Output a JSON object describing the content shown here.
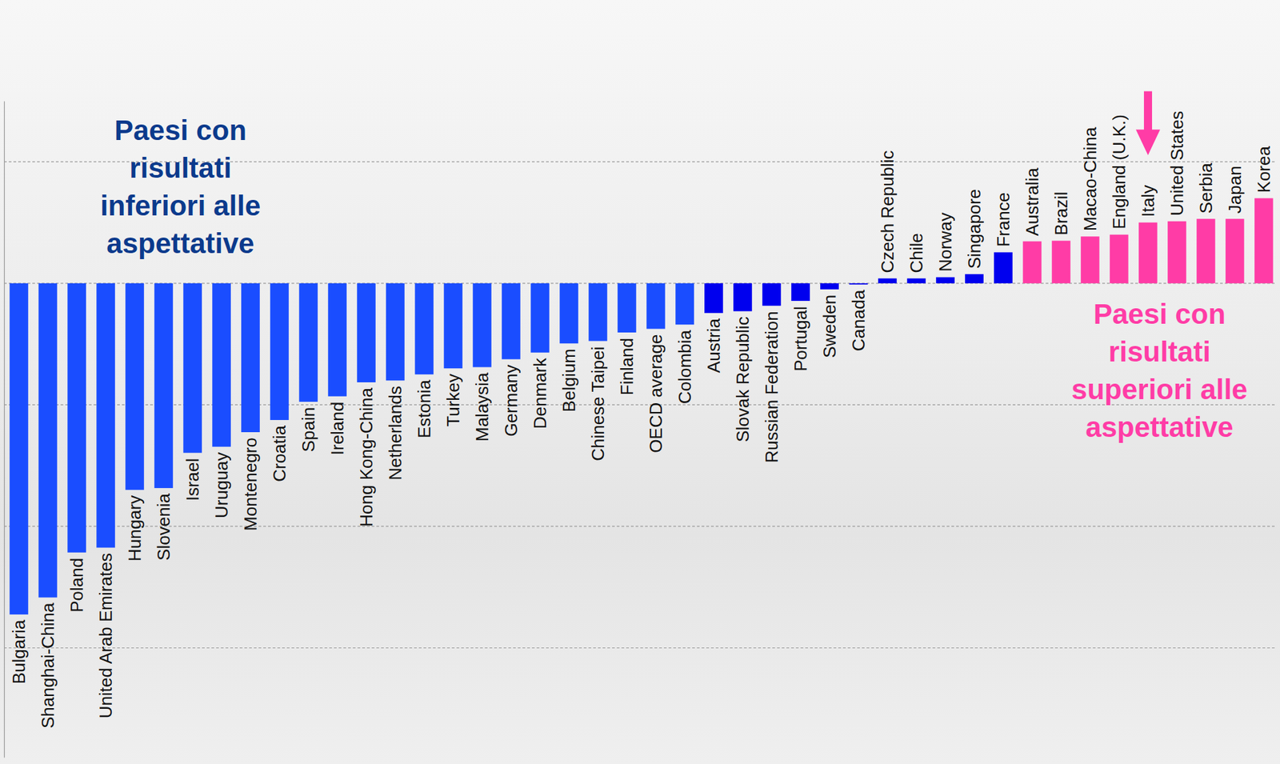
{
  "chart_data": {
    "type": "bar",
    "categories": [
      "Bulgaria",
      "Shanghai-China",
      "Poland",
      "United Arab Emirates",
      "Hungary",
      "Slovenia",
      "Israel",
      "Uruguay",
      "Montenegro",
      "Croatia",
      "Spain",
      "Ireland",
      "Hong Kong-China",
      "Netherlands",
      "Estonia",
      "Turkey",
      "Malaysia",
      "Germany",
      "Denmark",
      "Belgium",
      "Chinese Taipei",
      "Finland",
      "OECD average",
      "Colombia",
      "Austria",
      "Slovak Republic",
      "Russian Federation",
      "Portugal",
      "Sweden",
      "Canada",
      "Czech Republic",
      "Chile",
      "Norway",
      "Singapore",
      "France",
      "Australia",
      "Brazil",
      "Macao-China",
      "England (U.K.)",
      "Italy",
      "United States",
      "Serbia",
      "Japan",
      "Korea"
    ],
    "values": [
      -54.5,
      -51.7,
      -44.3,
      -43.5,
      -34.0,
      -33.7,
      -27.9,
      -26.9,
      -24.5,
      -22.5,
      -19.5,
      -18.6,
      -16.3,
      -16.0,
      -15.0,
      -14.0,
      -13.8,
      -12.5,
      -11.4,
      -9.9,
      -9.5,
      -8.1,
      -7.5,
      -6.8,
      -4.9,
      -4.6,
      -3.7,
      -2.9,
      -1.0,
      -0.2,
      0.8,
      0.8,
      1.0,
      1.5,
      5.1,
      6.9,
      7.0,
      7.7,
      8.0,
      10.0,
      10.2,
      10.6,
      10.6,
      14.0
    ],
    "colors": [
      "#1a4dff",
      "#1a4dff",
      "#1a4dff",
      "#1a4dff",
      "#1a4dff",
      "#1a4dff",
      "#1a4dff",
      "#1a4dff",
      "#1a4dff",
      "#1a4dff",
      "#1a4dff",
      "#1a4dff",
      "#1a4dff",
      "#1a4dff",
      "#1a4dff",
      "#1a4dff",
      "#1a4dff",
      "#1a4dff",
      "#1a4dff",
      "#1a4dff",
      "#1a4dff",
      "#1a4dff",
      "#1a4dff",
      "#1a4dff",
      "#0000ee",
      "#0000ee",
      "#0000ee",
      "#0000ee",
      "#0000ee",
      "#0000ee",
      "#0000ee",
      "#0000ee",
      "#0000ee",
      "#0000ee",
      "#0000ee",
      "#ff3ca6",
      "#ff3ca6",
      "#ff3ca6",
      "#ff3ca6",
      "#ff3ca6",
      "#ff3ca6",
      "#ff3ca6",
      "#ff3ca6",
      "#ff3ca6"
    ],
    "ylim": [
      -78,
      30
    ],
    "yticks": [
      -60,
      -40,
      -20,
      0,
      20
    ],
    "grid": true,
    "tick_labels": false,
    "annotations": [
      {
        "text": [
          "Paesi con",
          "risultati",
          "inferiori alle",
          "aspettative"
        ],
        "color": "#0b3a8c"
      },
      {
        "text": [
          "Paesi con",
          "risultati",
          "superiori alle",
          "aspettative"
        ],
        "color": "#ff3ca6"
      }
    ]
  }
}
